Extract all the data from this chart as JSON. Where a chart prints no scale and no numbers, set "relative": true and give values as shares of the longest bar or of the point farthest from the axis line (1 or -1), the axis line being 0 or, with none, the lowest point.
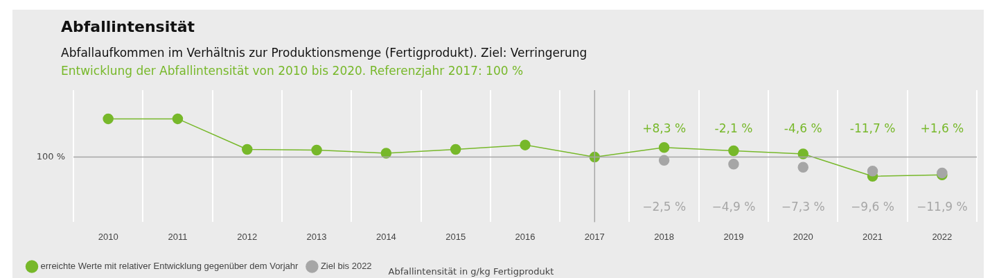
{
  "chart_data": {
    "type": "line",
    "title": "Abfallintensität",
    "subtitle": "Abfallaufkommen im Verhältnis zur Produktionsmenge (Fertigprodukt). Ziel: Verringerung",
    "relative": true,
    "annotations": [
      "Entwicklung der Abfallintensität von 2010 bis 2020. Referenzjahr 2017: 100 %",
      "Abfallintensität in g/kg Fertigprodukt",
      "100 %",
      "+8,3 %",
      "-2,1 %",
      "-4,6 %",
      "-11,7 %",
      "+1,6 %",
      "−2,5 %",
      "−4,9 %",
      "−7,3 %",
      "−9,6 %",
      "−11,9 %"
    ],
    "categories": [
      "2010",
      "2011",
      "2012",
      "2013",
      "2014",
      "2015",
      "2016",
      "2017",
      "2018",
      "2019",
      "2020",
      "2021",
      "2022"
    ],
    "series": [
      {
        "name": "erreichte Werte mit relativer Entwicklung gegenüber dem Vorjahr",
        "color": "#77b82a",
        "values": [
          1,
          1,
          0.467,
          0.456,
          0.4,
          0.467,
          0.544,
          0.333,
          0.5,
          0.444,
          0.389,
          0,
          0.022
        ]
      },
      {
        "name": "Ziel bis 2022",
        "color": "#a6a6a6",
        "type": "scatter",
        "values": [
          null,
          null,
          null,
          null,
          null,
          null,
          null,
          null,
          0.278,
          0.211,
          0.156,
          0.089,
          0.056
        ]
      }
    ],
    "ref_lines": [
      {
        "axis": "x",
        "value": "2017",
        "color": "#a6a6a6"
      },
      {
        "axis": "y",
        "value": 0.333,
        "color": "#a6a6a6"
      }
    ],
    "grid": "x",
    "legend": "bottom left",
    "marker": "circle",
    "line_style": "solid"
  }
}
